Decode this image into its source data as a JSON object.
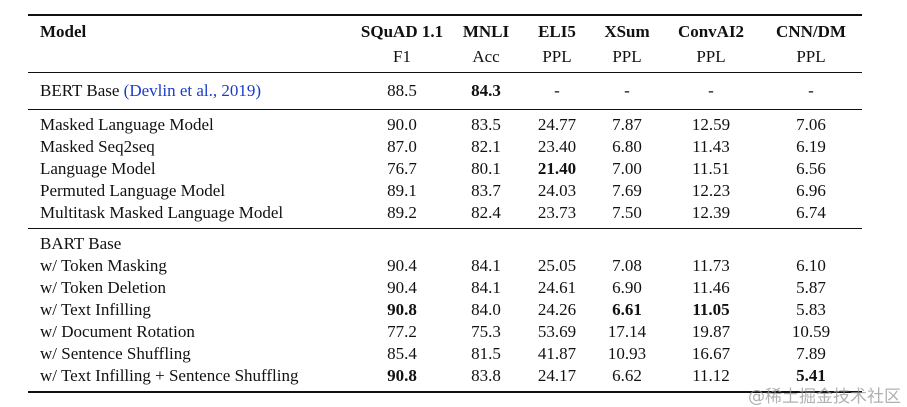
{
  "header": {
    "model": "Model",
    "columns": [
      {
        "name": "SQuAD 1.1",
        "metric": "F1"
      },
      {
        "name": "MNLI",
        "metric": "Acc"
      },
      {
        "name": "ELI5",
        "metric": "PPL"
      },
      {
        "name": "XSum",
        "metric": "PPL"
      },
      {
        "name": "ConvAI2",
        "metric": "PPL"
      },
      {
        "name": "CNN/DM",
        "metric": "PPL"
      }
    ]
  },
  "groups": [
    {
      "rows": [
        {
          "model": "BERT Base ",
          "citation": "(Devlin et al., 2019)",
          "values": [
            "88.5",
            "84.3",
            "-",
            "-",
            "-",
            "-"
          ],
          "bold": [
            1
          ]
        }
      ]
    },
    {
      "rows": [
        {
          "model": "Masked Language Model",
          "values": [
            "90.0",
            "83.5",
            "24.77",
            "7.87",
            "12.59",
            "7.06"
          ],
          "bold": []
        },
        {
          "model": "Masked Seq2seq",
          "values": [
            "87.0",
            "82.1",
            "23.40",
            "6.80",
            "11.43",
            "6.19"
          ],
          "bold": []
        },
        {
          "model": "Language Model",
          "values": [
            "76.7",
            "80.1",
            "21.40",
            "7.00",
            "11.51",
            "6.56"
          ],
          "bold": [
            2
          ]
        },
        {
          "model": "Permuted Language Model",
          "values": [
            "89.1",
            "83.7",
            "24.03",
            "7.69",
            "12.23",
            "6.96"
          ],
          "bold": []
        },
        {
          "model": "Multitask Masked Language Model",
          "values": [
            "89.2",
            "82.4",
            "23.73",
            "7.50",
            "12.39",
            "6.74"
          ],
          "bold": []
        }
      ]
    },
    {
      "rows": [
        {
          "model": "BART Base",
          "values": [
            "",
            "",
            "",
            "",
            "",
            ""
          ],
          "bold": []
        },
        {
          "model": "w/ Token Masking",
          "values": [
            "90.4",
            "84.1",
            "25.05",
            "7.08",
            "11.73",
            "6.10"
          ],
          "bold": []
        },
        {
          "model": "w/ Token Deletion",
          "values": [
            "90.4",
            "84.1",
            "24.61",
            "6.90",
            "11.46",
            "5.87"
          ],
          "bold": []
        },
        {
          "model": "w/ Text Infilling",
          "values": [
            "90.8",
            "84.0",
            "24.26",
            "6.61",
            "11.05",
            "5.83"
          ],
          "bold": [
            0,
            3,
            4
          ]
        },
        {
          "model": "w/ Document Rotation",
          "values": [
            "77.2",
            "75.3",
            "53.69",
            "17.14",
            "19.87",
            "10.59"
          ],
          "bold": []
        },
        {
          "model": "w/ Sentence Shuffling",
          "values": [
            "85.4",
            "81.5",
            "41.87",
            "10.93",
            "16.67",
            "7.89"
          ],
          "bold": []
        },
        {
          "model": "w/ Text Infilling + Sentence Shuffling",
          "values": [
            "90.8",
            "83.8",
            "24.17",
            "6.62",
            "11.12",
            "5.41"
          ],
          "bold": [
            0,
            5
          ]
        }
      ]
    }
  ],
  "watermark": "@稀土掘金技术社区",
  "colors": {
    "citation": "#1a3cc8",
    "text": "#111111"
  }
}
